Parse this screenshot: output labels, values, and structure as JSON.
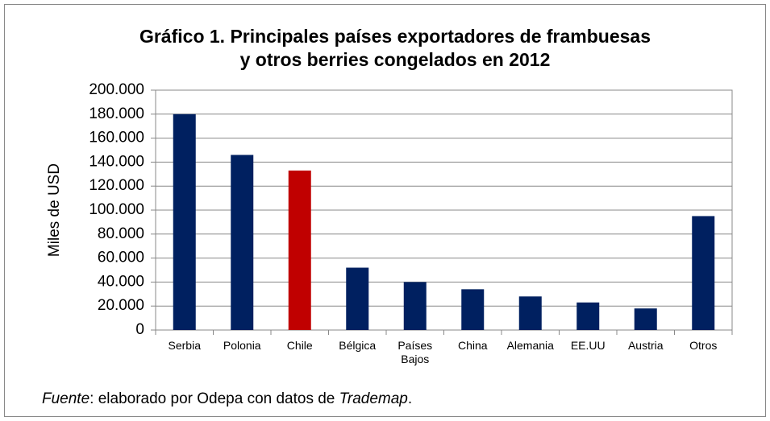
{
  "chart_data": {
    "type": "bar",
    "title": [
      "Gráfico 1. Principales países exportadores de frambuesas",
      "y otros berries congelados en 2012"
    ],
    "ylabel": "Miles de USD",
    "categories": [
      "Serbia",
      "Polonia",
      "Chile",
      "Bélgica",
      "Países Bajos",
      "China",
      "Alemania",
      "EE.UU",
      "Austria",
      "Otros"
    ],
    "values": [
      180000,
      146000,
      133000,
      52000,
      40000,
      34000,
      28000,
      23000,
      18000,
      95000
    ],
    "colors": [
      "#002060",
      "#002060",
      "#c00000",
      "#002060",
      "#002060",
      "#002060",
      "#002060",
      "#002060",
      "#002060",
      "#002060"
    ],
    "ylim": [
      0,
      200000
    ],
    "yticks": [
      0,
      {
        "value": 20000,
        "label": "20.000"
      },
      {
        "value": 40000,
        "label": "40.000"
      },
      {
        "value": 60000,
        "label": "60.000"
      },
      {
        "value": 80000,
        "label": "80.000"
      },
      {
        "value": 100000,
        "label": "100.000"
      },
      {
        "value": 120000,
        "label": "120.000"
      },
      {
        "value": 140000,
        "label": "140.000"
      },
      {
        "value": 160000,
        "label": "160.000"
      },
      {
        "value": 180000,
        "label": "180.000"
      },
      {
        "value": 200000,
        "label": "200.000"
      }
    ],
    "grid": true,
    "source": [
      "Fuente",
      ": elaborado por Odepa con datos de ",
      "Trademap",
      "."
    ]
  }
}
